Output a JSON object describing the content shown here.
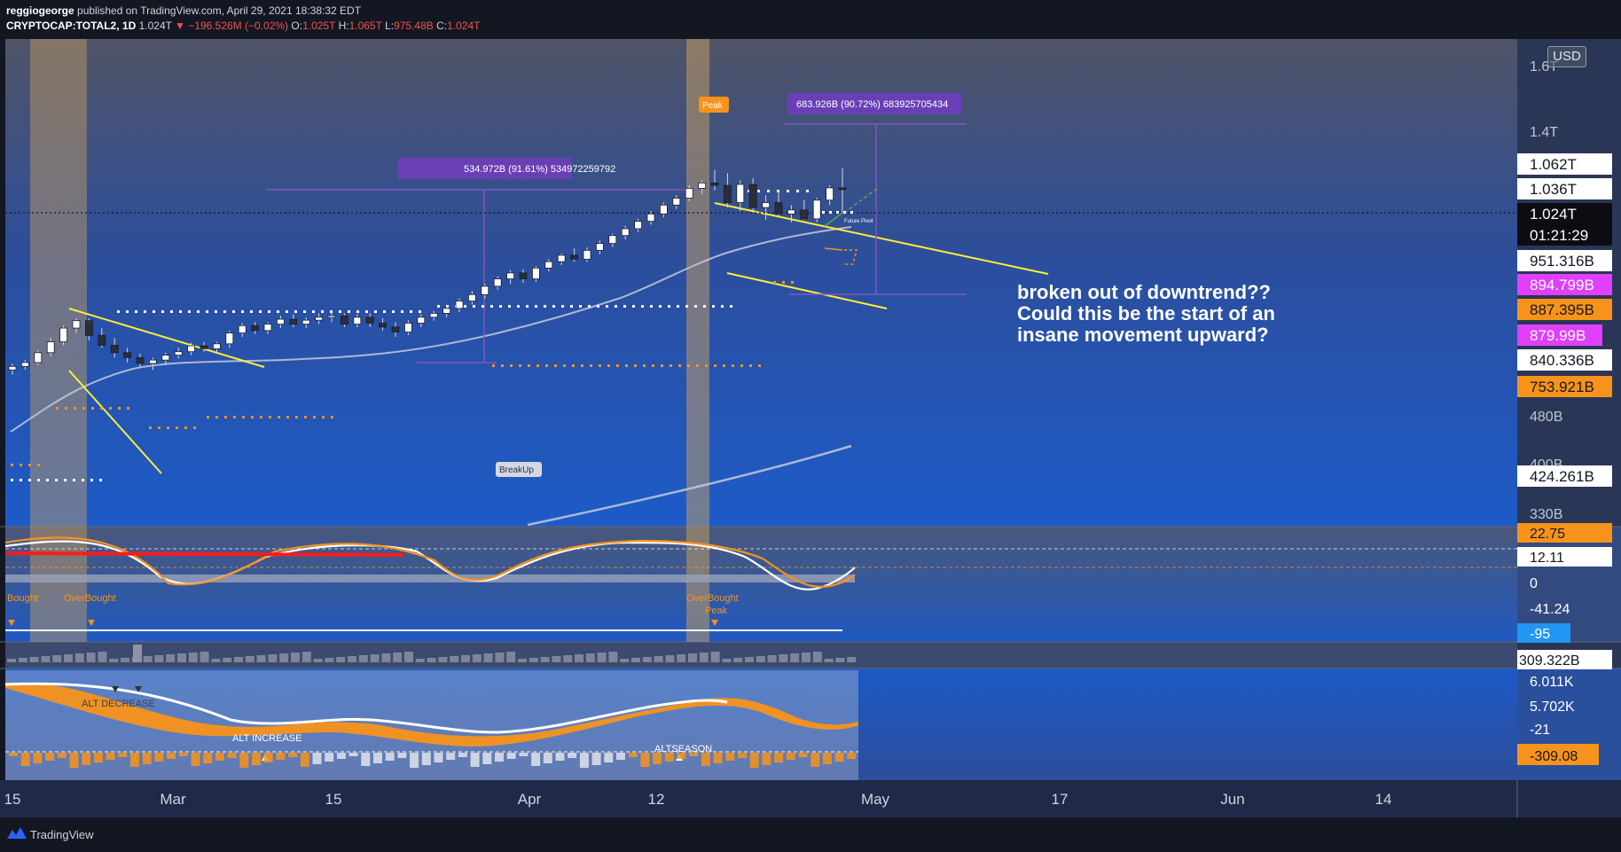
{
  "header": {
    "author": "reggiogeorge",
    "published": "published on TradingView.com, April 29, 2021 18:38:32 EDT",
    "symbol": "CRYPTOCAP:TOTAL2, 1D",
    "last": "1.024T",
    "change": "▼ −196.526M (−0.02%)",
    "open_label": "O:",
    "open": "1.025T",
    "high_label": "H:",
    "high": "1.065T",
    "low_label": "L:",
    "low": "975.48B",
    "close_label": "C:",
    "close": "1.024T"
  },
  "currency": "USD",
  "annotation": "broken out of downtrend?? Could this be the start of an insane movement upward?",
  "footer": {
    "brand": "TradingView"
  },
  "colors": {
    "up": "#ffffff",
    "down": "#2a2e39",
    "yellow": "#ffeb3b",
    "orange": "#f7931a",
    "purple": "#7e57c2",
    "magenta": "#e040fb",
    "grey_band": "#b0a090"
  },
  "chart_data": {
    "type": "candlestick",
    "timeframe": "1D",
    "x_ticks": [
      "15",
      "Mar",
      "15",
      "Apr",
      "12",
      "May",
      "17",
      "Jun",
      "14"
    ],
    "price_scale": [
      "1.6T",
      "1.4T",
      "480B",
      "400B",
      "330B"
    ],
    "price_labels": [
      {
        "text": "1.062T",
        "style": "white"
      },
      {
        "text": "1.036T",
        "style": "white"
      },
      {
        "text": "1.024T",
        "style": "black"
      },
      {
        "text": "01:21:29",
        "style": "black"
      },
      {
        "text": "951.316B",
        "style": "white"
      },
      {
        "text": "894.799B",
        "style": "magenta"
      },
      {
        "text": "887.395B",
        "style": "orange"
      },
      {
        "text": "879.99B",
        "style": "magenta"
      },
      {
        "text": "840.336B",
        "style": "white"
      },
      {
        "text": "753.921B",
        "style": "orange"
      },
      {
        "text": "424.261B",
        "style": "white"
      }
    ],
    "candles": [
      [
        655,
        668,
        645,
        662
      ],
      [
        662,
        675,
        655,
        670
      ],
      [
        670,
        695,
        665,
        690
      ],
      [
        690,
        720,
        682,
        712
      ],
      [
        712,
        745,
        705,
        740
      ],
      [
        740,
        760,
        730,
        755
      ],
      [
        755,
        760,
        715,
        725
      ],
      [
        725,
        740,
        700,
        705
      ],
      [
        705,
        720,
        680,
        690
      ],
      [
        690,
        700,
        670,
        680
      ],
      [
        680,
        688,
        660,
        668
      ],
      [
        668,
        680,
        655,
        675
      ],
      [
        675,
        690,
        665,
        685
      ],
      [
        685,
        700,
        678,
        692
      ],
      [
        692,
        710,
        685,
        704
      ],
      [
        704,
        712,
        692,
        698
      ],
      [
        698,
        712,
        690,
        708
      ],
      [
        708,
        735,
        700,
        730
      ],
      [
        730,
        750,
        722,
        745
      ],
      [
        745,
        752,
        728,
        735
      ],
      [
        735,
        752,
        728,
        748
      ],
      [
        748,
        765,
        740,
        758
      ],
      [
        758,
        768,
        742,
        748
      ],
      [
        748,
        762,
        740,
        756
      ],
      [
        756,
        770,
        748,
        762
      ],
      [
        762,
        772,
        752,
        765
      ],
      [
        765,
        770,
        742,
        748
      ],
      [
        748,
        768,
        742,
        762
      ],
      [
        762,
        770,
        742,
        750
      ],
      [
        750,
        760,
        735,
        742
      ],
      [
        742,
        752,
        722,
        732
      ],
      [
        732,
        756,
        726,
        750
      ],
      [
        750,
        768,
        742,
        762
      ],
      [
        762,
        775,
        755,
        770
      ],
      [
        770,
        785,
        762,
        780
      ],
      [
        780,
        800,
        772,
        795
      ],
      [
        795,
        815,
        788,
        808
      ],
      [
        808,
        830,
        800,
        825
      ],
      [
        825,
        845,
        818,
        840
      ],
      [
        840,
        858,
        830,
        852
      ],
      [
        852,
        860,
        832,
        840
      ],
      [
        840,
        866,
        834,
        862
      ],
      [
        862,
        880,
        855,
        875
      ],
      [
        875,
        892,
        868,
        888
      ],
      [
        888,
        902,
        875,
        880
      ],
      [
        880,
        904,
        874,
        898
      ],
      [
        898,
        918,
        890,
        912
      ],
      [
        912,
        932,
        905,
        928
      ],
      [
        928,
        948,
        920,
        942
      ],
      [
        942,
        962,
        935,
        957
      ],
      [
        957,
        978,
        950,
        972
      ],
      [
        972,
        995,
        965,
        990
      ],
      [
        990,
        1010,
        982,
        1004
      ],
      [
        1004,
        1030,
        998,
        1024
      ],
      [
        1024,
        1040,
        1012,
        1035
      ],
      [
        1035,
        1062,
        1020,
        1030
      ],
      [
        1030,
        1055,
        985,
        995
      ],
      [
        995,
        1040,
        978,
        1032
      ],
      [
        1032,
        1045,
        975,
        985
      ],
      [
        985,
        1010,
        960,
        995
      ],
      [
        995,
        1015,
        965,
        972
      ],
      [
        972,
        990,
        955,
        980
      ],
      [
        980,
        1000,
        960,
        962
      ],
      [
        962,
        1005,
        955,
        1000
      ],
      [
        1000,
        1030,
        990,
        1025
      ],
      [
        1025,
        1065,
        975,
        1024
      ]
    ],
    "price_to_y": [
      [
        1600,
        62
      ],
      [
        1400,
        128
      ],
      [
        1062,
        160
      ],
      [
        1036,
        183
      ],
      [
        1024,
        207
      ],
      [
        951.316,
        252
      ],
      [
        894.799,
        276
      ],
      [
        887.395,
        300
      ],
      [
        879.99,
        324
      ],
      [
        840.336,
        349
      ],
      [
        753.921,
        374
      ],
      [
        480,
        401
      ],
      [
        400,
        448
      ],
      [
        330,
        496
      ]
    ],
    "annotations": {
      "peak_label": "Peak",
      "breakup_label": "BreakUp",
      "future_pivot": "Future Pivot",
      "measure_1": "534.972B (91.61%) 534972259792",
      "measure_2": "683.926B (90.72%) 683925705434"
    },
    "oscillator": {
      "scale": [
        "22.75",
        "12.11",
        "0",
        "-41.24",
        "-95"
      ],
      "labels": [
        "Bought",
        "OverBought",
        "OverBought",
        "Peak"
      ]
    },
    "volume": {
      "label": "309.322B"
    },
    "alt_panel": {
      "scale": [
        "6.011K",
        "5.702K",
        "-21",
        "-309.08"
      ],
      "labels": [
        "ALT DECREASE",
        "ALT INCREASE",
        "ALTSEASON"
      ]
    }
  }
}
